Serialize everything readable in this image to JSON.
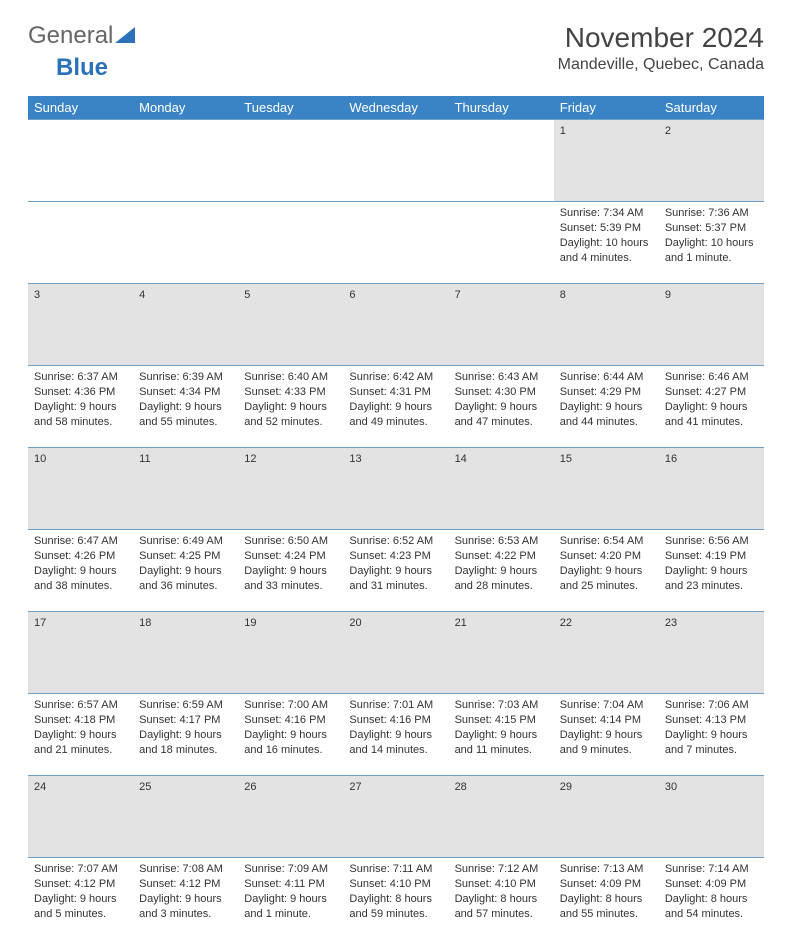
{
  "logo": {
    "part1": "General",
    "part2": "Blue"
  },
  "title": "November 2024",
  "location": "Mandeville, Quebec, Canada",
  "colors": {
    "header_bg": "#3a84c5",
    "header_text": "#ffffff",
    "daynum_bg": "#e3e3e3",
    "cell_border": "#6fa0c8",
    "logo_blue": "#2c72b8",
    "text": "#333333"
  },
  "weekdays": [
    "Sunday",
    "Monday",
    "Tuesday",
    "Wednesday",
    "Thursday",
    "Friday",
    "Saturday"
  ],
  "weeks": [
    {
      "nums": [
        "",
        "",
        "",
        "",
        "",
        "1",
        "2"
      ],
      "cells": [
        null,
        null,
        null,
        null,
        null,
        {
          "sunrise": "Sunrise: 7:34 AM",
          "sunset": "Sunset: 5:39 PM",
          "daylight": "Daylight: 10 hours and 4 minutes."
        },
        {
          "sunrise": "Sunrise: 7:36 AM",
          "sunset": "Sunset: 5:37 PM",
          "daylight": "Daylight: 10 hours and 1 minute."
        }
      ]
    },
    {
      "nums": [
        "3",
        "4",
        "5",
        "6",
        "7",
        "8",
        "9"
      ],
      "cells": [
        {
          "sunrise": "Sunrise: 6:37 AM",
          "sunset": "Sunset: 4:36 PM",
          "daylight": "Daylight: 9 hours and 58 minutes."
        },
        {
          "sunrise": "Sunrise: 6:39 AM",
          "sunset": "Sunset: 4:34 PM",
          "daylight": "Daylight: 9 hours and 55 minutes."
        },
        {
          "sunrise": "Sunrise: 6:40 AM",
          "sunset": "Sunset: 4:33 PM",
          "daylight": "Daylight: 9 hours and 52 minutes."
        },
        {
          "sunrise": "Sunrise: 6:42 AM",
          "sunset": "Sunset: 4:31 PM",
          "daylight": "Daylight: 9 hours and 49 minutes."
        },
        {
          "sunrise": "Sunrise: 6:43 AM",
          "sunset": "Sunset: 4:30 PM",
          "daylight": "Daylight: 9 hours and 47 minutes."
        },
        {
          "sunrise": "Sunrise: 6:44 AM",
          "sunset": "Sunset: 4:29 PM",
          "daylight": "Daylight: 9 hours and 44 minutes."
        },
        {
          "sunrise": "Sunrise: 6:46 AM",
          "sunset": "Sunset: 4:27 PM",
          "daylight": "Daylight: 9 hours and 41 minutes."
        }
      ]
    },
    {
      "nums": [
        "10",
        "11",
        "12",
        "13",
        "14",
        "15",
        "16"
      ],
      "cells": [
        {
          "sunrise": "Sunrise: 6:47 AM",
          "sunset": "Sunset: 4:26 PM",
          "daylight": "Daylight: 9 hours and 38 minutes."
        },
        {
          "sunrise": "Sunrise: 6:49 AM",
          "sunset": "Sunset: 4:25 PM",
          "daylight": "Daylight: 9 hours and 36 minutes."
        },
        {
          "sunrise": "Sunrise: 6:50 AM",
          "sunset": "Sunset: 4:24 PM",
          "daylight": "Daylight: 9 hours and 33 minutes."
        },
        {
          "sunrise": "Sunrise: 6:52 AM",
          "sunset": "Sunset: 4:23 PM",
          "daylight": "Daylight: 9 hours and 31 minutes."
        },
        {
          "sunrise": "Sunrise: 6:53 AM",
          "sunset": "Sunset: 4:22 PM",
          "daylight": "Daylight: 9 hours and 28 minutes."
        },
        {
          "sunrise": "Sunrise: 6:54 AM",
          "sunset": "Sunset: 4:20 PM",
          "daylight": "Daylight: 9 hours and 25 minutes."
        },
        {
          "sunrise": "Sunrise: 6:56 AM",
          "sunset": "Sunset: 4:19 PM",
          "daylight": "Daylight: 9 hours and 23 minutes."
        }
      ]
    },
    {
      "nums": [
        "17",
        "18",
        "19",
        "20",
        "21",
        "22",
        "23"
      ],
      "cells": [
        {
          "sunrise": "Sunrise: 6:57 AM",
          "sunset": "Sunset: 4:18 PM",
          "daylight": "Daylight: 9 hours and 21 minutes."
        },
        {
          "sunrise": "Sunrise: 6:59 AM",
          "sunset": "Sunset: 4:17 PM",
          "daylight": "Daylight: 9 hours and 18 minutes."
        },
        {
          "sunrise": "Sunrise: 7:00 AM",
          "sunset": "Sunset: 4:16 PM",
          "daylight": "Daylight: 9 hours and 16 minutes."
        },
        {
          "sunrise": "Sunrise: 7:01 AM",
          "sunset": "Sunset: 4:16 PM",
          "daylight": "Daylight: 9 hours and 14 minutes."
        },
        {
          "sunrise": "Sunrise: 7:03 AM",
          "sunset": "Sunset: 4:15 PM",
          "daylight": "Daylight: 9 hours and 11 minutes."
        },
        {
          "sunrise": "Sunrise: 7:04 AM",
          "sunset": "Sunset: 4:14 PM",
          "daylight": "Daylight: 9 hours and 9 minutes."
        },
        {
          "sunrise": "Sunrise: 7:06 AM",
          "sunset": "Sunset: 4:13 PM",
          "daylight": "Daylight: 9 hours and 7 minutes."
        }
      ]
    },
    {
      "nums": [
        "24",
        "25",
        "26",
        "27",
        "28",
        "29",
        "30"
      ],
      "cells": [
        {
          "sunrise": "Sunrise: 7:07 AM",
          "sunset": "Sunset: 4:12 PM",
          "daylight": "Daylight: 9 hours and 5 minutes."
        },
        {
          "sunrise": "Sunrise: 7:08 AM",
          "sunset": "Sunset: 4:12 PM",
          "daylight": "Daylight: 9 hours and 3 minutes."
        },
        {
          "sunrise": "Sunrise: 7:09 AM",
          "sunset": "Sunset: 4:11 PM",
          "daylight": "Daylight: 9 hours and 1 minute."
        },
        {
          "sunrise": "Sunrise: 7:11 AM",
          "sunset": "Sunset: 4:10 PM",
          "daylight": "Daylight: 8 hours and 59 minutes."
        },
        {
          "sunrise": "Sunrise: 7:12 AM",
          "sunset": "Sunset: 4:10 PM",
          "daylight": "Daylight: 8 hours and 57 minutes."
        },
        {
          "sunrise": "Sunrise: 7:13 AM",
          "sunset": "Sunset: 4:09 PM",
          "daylight": "Daylight: 8 hours and 55 minutes."
        },
        {
          "sunrise": "Sunrise: 7:14 AM",
          "sunset": "Sunset: 4:09 PM",
          "daylight": "Daylight: 8 hours and 54 minutes."
        }
      ]
    }
  ]
}
